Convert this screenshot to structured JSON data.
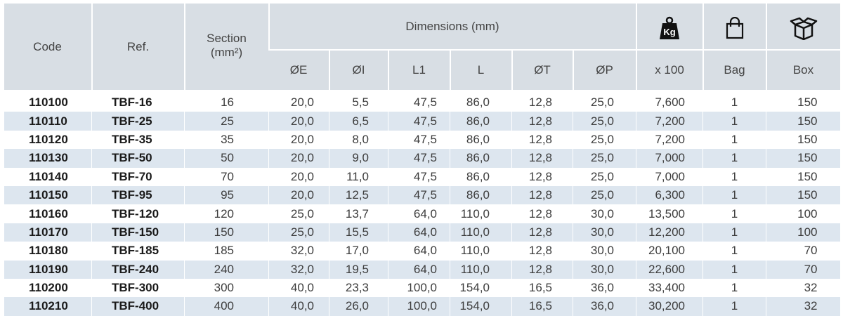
{
  "header": {
    "code": "Code",
    "ref": "Ref.",
    "section": "Section",
    "section_unit": "(mm²)",
    "dimensions": "Dimensions (mm)",
    "dimension_columns": [
      "ØE",
      "ØI",
      "L1",
      "L",
      "ØT",
      "ØP"
    ],
    "weight_icon": "Kg",
    "weight_unit": "x 100",
    "bag": "Bag",
    "box": "Box"
  },
  "rows": [
    [
      "110100",
      "TBF-16",
      "16",
      "20,0",
      "5,5",
      "47,5",
      "86,0",
      "12,8",
      "25,0",
      "7,600",
      "1",
      "150"
    ],
    [
      "110110",
      "TBF-25",
      "25",
      "20,0",
      "6,5",
      "47,5",
      "86,0",
      "12,8",
      "25,0",
      "7,200",
      "1",
      "150"
    ],
    [
      "110120",
      "TBF-35",
      "35",
      "20,0",
      "8,0",
      "47,5",
      "86,0",
      "12,8",
      "25,0",
      "7,200",
      "1",
      "150"
    ],
    [
      "110130",
      "TBF-50",
      "50",
      "20,0",
      "9,0",
      "47,5",
      "86,0",
      "12,8",
      "25,0",
      "7,000",
      "1",
      "150"
    ],
    [
      "110140",
      "TBF-70",
      "70",
      "20,0",
      "11,0",
      "47,5",
      "86,0",
      "12,8",
      "25,0",
      "7,000",
      "1",
      "150"
    ],
    [
      "110150",
      "TBF-95",
      "95",
      "20,0",
      "12,5",
      "47,5",
      "86,0",
      "12,8",
      "25,0",
      "6,300",
      "1",
      "150"
    ],
    [
      "110160",
      "TBF-120",
      "120",
      "25,0",
      "13,7",
      "64,0",
      "110,0",
      "12,8",
      "30,0",
      "13,500",
      "1",
      "100"
    ],
    [
      "110170",
      "TBF-150",
      "150",
      "25,0",
      "15,5",
      "64,0",
      "110,0",
      "12,8",
      "30,0",
      "12,200",
      "1",
      "100"
    ],
    [
      "110180",
      "TBF-185",
      "185",
      "32,0",
      "17,0",
      "64,0",
      "110,0",
      "12,8",
      "30,0",
      "20,100",
      "1",
      "70"
    ],
    [
      "110190",
      "TBF-240",
      "240",
      "32,0",
      "19,5",
      "64,0",
      "110,0",
      "12,8",
      "30,0",
      "22,600",
      "1",
      "70"
    ],
    [
      "110200",
      "TBF-300",
      "300",
      "40,0",
      "23,3",
      "100,0",
      "154,0",
      "16,5",
      "36,0",
      "33,400",
      "1",
      "32"
    ],
    [
      "110210",
      "TBF-400",
      "400",
      "40,0",
      "26,0",
      "100,0",
      "154,0",
      "16,5",
      "36,0",
      "30,200",
      "1",
      "32"
    ]
  ]
}
